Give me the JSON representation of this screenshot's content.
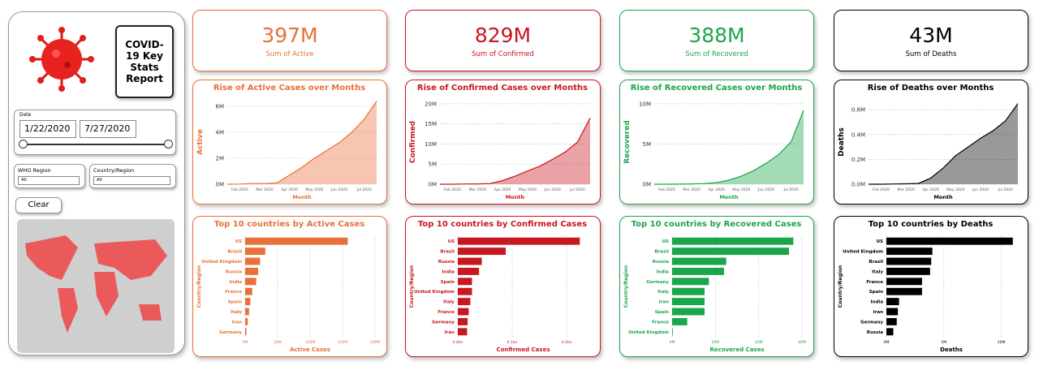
{
  "sidebar": {
    "title": "COVID-19 Key Stats Report",
    "date_label": "Date",
    "start_date": "1/22/2020",
    "end_date": "7/27/2020",
    "filters": [
      {
        "label": "WHO Region",
        "value": "All"
      },
      {
        "label": "Country/Region",
        "value": "All"
      }
    ],
    "clear": "Clear"
  },
  "cards": [
    {
      "value": "397M",
      "label": "Sum of Active",
      "color": "#e8703a"
    },
    {
      "value": "829M",
      "label": "Sum of Confirmed",
      "color": "#c8171e"
    },
    {
      "value": "388M",
      "label": "Sum of Recovered",
      "color": "#1aa64a"
    },
    {
      "value": "43M",
      "label": "Sum of Deaths",
      "color": "#000000"
    }
  ],
  "chart_data": [
    {
      "type": "area",
      "title": "Rise of Active Cases over Months",
      "xlabel": "Month",
      "ylabel": "Active",
      "color": "#e8703a",
      "categories": [
        null,
        "Feb 2020",
        null,
        "Mar 2020",
        null,
        "Apr 2020",
        null,
        "May 2020",
        null,
        "Jun 2020",
        null,
        "Jul 2020",
        null
      ],
      "values": [
        500,
        10000,
        50000,
        50000,
        100000,
        700000,
        1300000,
        2000000,
        2600000,
        3200000,
        4000000,
        5000000,
        6400000
      ],
      "ylim": [
        0,
        6500000
      ],
      "yticks": [
        {
          "value": 0,
          "label": "0M"
        },
        {
          "value": 2000000,
          "label": "2M"
        },
        {
          "value": 4000000,
          "label": "4M"
        },
        {
          "value": 6000000,
          "label": "6M"
        }
      ],
      "grid": true
    },
    {
      "type": "area",
      "title": "Rise of Confirmed Cases over Months",
      "xlabel": "Month",
      "ylabel": "Confirmed",
      "color": "#c8171e",
      "categories": [
        null,
        "Feb 2020",
        null,
        "Mar 2020",
        null,
        "Apr 2020",
        null,
        "May 2020",
        null,
        "Jun 2020",
        null,
        "Jul 2020",
        null
      ],
      "values": [
        600,
        10000,
        70000,
        90000,
        170000,
        900000,
        2000000,
        3300000,
        4500000,
        6200000,
        8000000,
        10500000,
        16500000
      ],
      "ylim": [
        0,
        21000000
      ],
      "yticks": [
        {
          "value": 0,
          "label": "0M"
        },
        {
          "value": 5000000,
          "label": "5M"
        },
        {
          "value": 10000000,
          "label": "10M"
        },
        {
          "value": 15000000,
          "label": "15M"
        },
        {
          "value": 20000000,
          "label": "20M"
        }
      ],
      "grid": true
    },
    {
      "type": "area",
      "title": "Rise of Recovered Cases over Months",
      "xlabel": "Month",
      "ylabel": "Recovered",
      "color": "#1aa64a",
      "categories": [
        null,
        "Feb 2020",
        null,
        "Mar 2020",
        null,
        "Apr 2020",
        null,
        "May 2020",
        null,
        "Jun 2020",
        null,
        "Jul 2020",
        null
      ],
      "values": [
        30,
        300,
        10000,
        40000,
        80000,
        200000,
        500000,
        1000000,
        1700000,
        2600000,
        3700000,
        5300000,
        9200000
      ],
      "ylim": [
        0,
        10500000
      ],
      "yticks": [
        {
          "value": 0,
          "label": "0M"
        },
        {
          "value": 5000000,
          "label": "5M"
        },
        {
          "value": 10000000,
          "label": "10M"
        }
      ],
      "grid": true
    },
    {
      "type": "area",
      "title": "Rise of Deaths over Months",
      "xlabel": "Month",
      "ylabel": "Deaths",
      "color": "#000000",
      "categories": [
        null,
        "Feb 2020",
        null,
        "Mar 2020",
        null,
        "Apr 2020",
        null,
        "May 2020",
        null,
        "Jun 2020",
        null,
        "Jul 2020",
        null
      ],
      "values": [
        17,
        260,
        2000,
        3000,
        6000,
        50000,
        130000,
        230000,
        300000,
        370000,
        430000,
        510000,
        650000
      ],
      "ylim": [
        0,
        680000
      ],
      "yticks": [
        {
          "value": 0,
          "label": "0.0M"
        },
        {
          "value": 200000,
          "label": "0.2M"
        },
        {
          "value": 400000,
          "label": "0.4M"
        },
        {
          "value": 600000,
          "label": "0.6M"
        }
      ],
      "grid": true
    },
    {
      "type": "hbar",
      "title": "Top 10 countries by Active Cases",
      "xlabel": "Active Cases",
      "ylabel": "Country/Region",
      "color": "#e8703a",
      "categories": [
        "US",
        "Brazil",
        "United Kingdom",
        "Russia",
        "India",
        "France",
        "Spain",
        "Italy",
        "Iran",
        "Germany"
      ],
      "values": [
        158000000,
        31000000,
        23000000,
        20000000,
        17000000,
        11000000,
        8000000,
        6000000,
        4000000,
        2000000
      ],
      "xlim": [
        0,
        200000000
      ],
      "xticks": [
        {
          "value": 0,
          "label": "0M"
        },
        {
          "value": 50000000,
          "label": "50M"
        },
        {
          "value": 100000000,
          "label": "100M"
        },
        {
          "value": 150000000,
          "label": "150M"
        },
        {
          "value": 200000000,
          "label": "200M"
        }
      ],
      "grid": true
    },
    {
      "type": "hbar",
      "title": "Top 10 countries by Confirmed Cases",
      "xlabel": "Confirmed Cases",
      "ylabel": "Country/Region",
      "color": "#c8171e",
      "categories": [
        "US",
        "Brazil",
        "Russia",
        "India",
        "Spain",
        "United Kingdom",
        "Italy",
        "France",
        "Germany",
        "Iran"
      ],
      "values": [
        224000000,
        88000000,
        44000000,
        39000000,
        26000000,
        26000000,
        23000000,
        20000000,
        18000000,
        17000000
      ],
      "xlim": [
        0,
        240000000
      ],
      "xticks": [
        {
          "value": 0,
          "label": "0.0bn"
        },
        {
          "value": 100000000,
          "label": "0.1bn"
        },
        {
          "value": 200000000,
          "label": "0.2bn"
        }
      ],
      "grid": true
    },
    {
      "type": "hbar",
      "title": "Top 10 countries by Recovered Cases",
      "xlabel": "Recovered Cases",
      "ylabel": "Country/Region",
      "color": "#1aa64a",
      "categories": [
        "US",
        "Brazil",
        "Russia",
        "India",
        "Germany",
        "Italy",
        "Iran",
        "Spain",
        "France",
        "United Kingdom"
      ],
      "values": [
        56000000,
        54000000,
        25000000,
        24000000,
        17000000,
        15000000,
        15000000,
        15000000,
        7000000,
        300000
      ],
      "xlim": [
        0,
        60000000
      ],
      "xticks": [
        {
          "value": 0,
          "label": "0M"
        },
        {
          "value": 20000000,
          "label": "20M"
        },
        {
          "value": 40000000,
          "label": "40M"
        },
        {
          "value": 60000000,
          "label": "60M"
        }
      ],
      "grid": true
    },
    {
      "type": "hbar",
      "title": "Top 10 countries by Deaths",
      "xlabel": "Deaths",
      "ylabel": "Country/Region",
      "color": "#000000",
      "categories": [
        "US",
        "United Kingdom",
        "Brazil",
        "Italy",
        "France",
        "Spain",
        "India",
        "Iran",
        "Germany",
        "Russia"
      ],
      "values": [
        11000000,
        4000000,
        3900000,
        3800000,
        3100000,
        3100000,
        1100000,
        1000000,
        900000,
        600000
      ],
      "xlim": [
        0,
        11300000
      ],
      "xticks": [
        {
          "value": 0,
          "label": "0M"
        },
        {
          "value": 5000000,
          "label": "5M"
        },
        {
          "value": 10000000,
          "label": "10M"
        }
      ],
      "grid": true
    }
  ]
}
